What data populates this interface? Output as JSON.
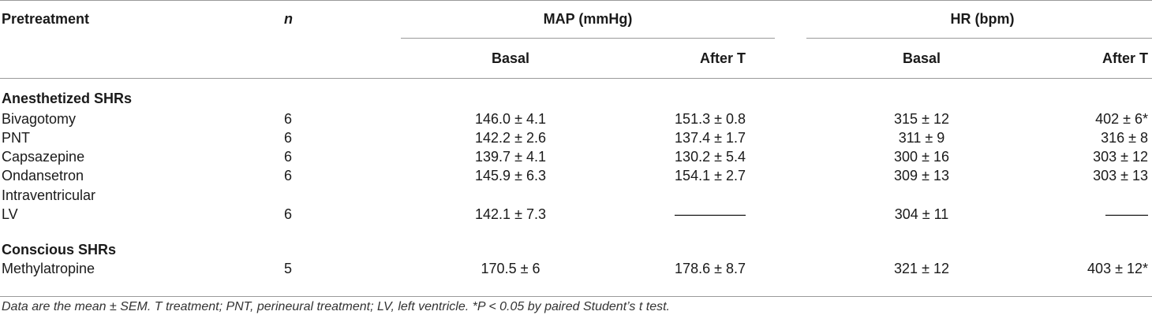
{
  "header": {
    "pretreatment": "Pretreatment",
    "n": "n",
    "map_group": "MAP (mmHg)",
    "hr_group": "HR (bpm)",
    "basal": "Basal",
    "after": "After T"
  },
  "groups": [
    {
      "title": "Anesthetized SHRs",
      "rows": [
        {
          "name": "Bivagotomy",
          "n": "6",
          "map_basal": "146.0 ± 4.1",
          "map_after": "151.3 ± 0.8",
          "hr_basal": "315 ± 12",
          "hr_after": "402 ± 6*"
        },
        {
          "name": "PNT",
          "n": "6",
          "map_basal": "142.2 ± 2.6",
          "map_after": "137.4 ± 1.7",
          "hr_basal": "311 ± 9",
          "hr_after": "316 ± 8"
        },
        {
          "name": "Capsazepine",
          "n": "6",
          "map_basal": "139.7 ± 4.1",
          "map_after": "130.2 ± 5.4",
          "hr_basal": "300 ± 16",
          "hr_after": "303 ± 12"
        },
        {
          "name": "Ondansetron",
          "n": "6",
          "map_basal": "145.9 ± 6.3",
          "map_after": "154.1 ± 2.7",
          "hr_basal": "309 ± 13",
          "hr_after": "303 ± 13"
        },
        {
          "name": "Intraventricular",
          "n": "",
          "map_basal": "",
          "map_after": "",
          "hr_basal": "",
          "hr_after": ""
        },
        {
          "name": "LV",
          "n": "6",
          "map_basal": "142.1 ± 7.3",
          "map_after": "—————",
          "hr_basal": "304 ± 11",
          "hr_after": "———"
        }
      ]
    },
    {
      "title": "Conscious SHRs",
      "rows": [
        {
          "name": "Methylatropine",
          "n": "5",
          "map_basal": "170.5 ± 6",
          "map_after": "178.6 ± 8.7",
          "hr_basal": "321 ± 12",
          "hr_after": "403 ± 12*"
        }
      ]
    }
  ],
  "footnote": "Data are the mean ± SEM. T treatment; PNT, perineural treatment; LV, left ventricle. *P < 0.05 by paired Student’s t test."
}
